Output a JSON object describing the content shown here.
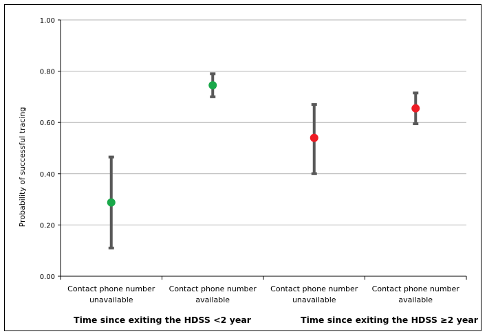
{
  "chart_data": {
    "type": "scatter",
    "subtype": "point-with-error-bars",
    "title": "",
    "ylabel": "Probability of successful tracing",
    "ylim": [
      0.0,
      1.0
    ],
    "yticks": [
      "0.00",
      "0.20",
      "0.40",
      "0.60",
      "0.80",
      "1.00"
    ],
    "ytick_values": [
      0.0,
      0.2,
      0.4,
      0.6,
      0.8,
      1.0
    ],
    "grid": true,
    "categories": [
      {
        "line1": "Contact phone number",
        "line2": "unavailable"
      },
      {
        "line1": "Contact phone number",
        "line2": "available"
      },
      {
        "line1": "Contact phone number",
        "line2": "unavailable"
      },
      {
        "line1": "Contact phone number",
        "line2": "available"
      }
    ],
    "groups": [
      {
        "label": "Time since exiting the HDSS <2 year",
        "color": "#1aa84a"
      },
      {
        "label": "Time since exiting the HDSS ≥2 year",
        "color": "#ee1c25"
      }
    ],
    "points": [
      {
        "group": 0,
        "value": 0.288,
        "lower": 0.11,
        "upper": 0.465
      },
      {
        "group": 0,
        "value": 0.745,
        "lower": 0.7,
        "upper": 0.79
      },
      {
        "group": 1,
        "value": 0.54,
        "lower": 0.4,
        "upper": 0.67
      },
      {
        "group": 1,
        "value": 0.655,
        "lower": 0.595,
        "upper": 0.715
      }
    ],
    "errorbar_color": "#595959",
    "axis_color": "#000000",
    "gridline_color": "#b3b3b3"
  }
}
